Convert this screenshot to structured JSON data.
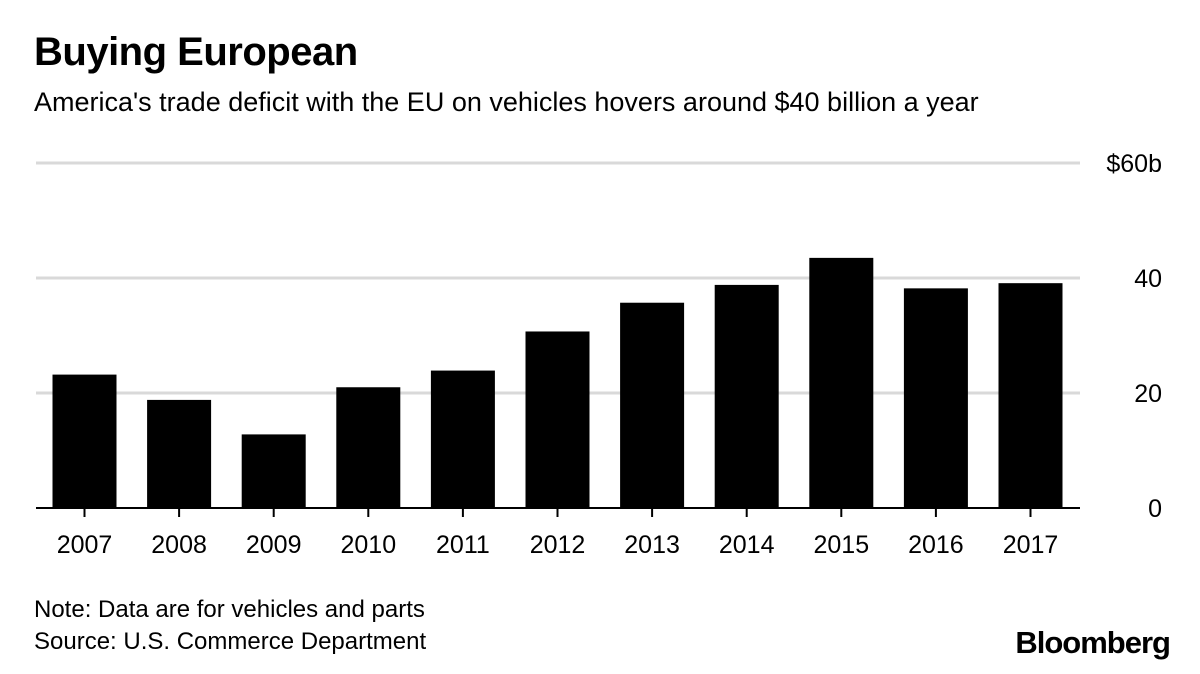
{
  "header": {
    "title": "Buying European",
    "subtitle": "America's trade deficit with the EU on vehicles hovers around $40 billion a year"
  },
  "footer": {
    "note": "Note: Data are for vehicles and parts",
    "source": "Source: U.S. Commerce Department",
    "brand": "Bloomberg"
  },
  "colors": {
    "bar": "#000000",
    "grid": "#d9d9d9",
    "axis": "#000000",
    "text": "#000000"
  },
  "chart_data": {
    "type": "bar",
    "title": "Buying European",
    "xlabel": "",
    "ylabel": "",
    "categories": [
      "2007",
      "2008",
      "2009",
      "2010",
      "2011",
      "2012",
      "2013",
      "2014",
      "2015",
      "2016",
      "2017"
    ],
    "values": [
      23.2,
      18.8,
      12.8,
      21.0,
      23.9,
      30.7,
      35.7,
      38.8,
      43.5,
      38.2,
      39.1
    ],
    "ylim": [
      0,
      60
    ],
    "yticks": [
      0,
      20,
      40,
      60
    ],
    "ytick_labels": [
      "0",
      "20",
      "40",
      "$60b"
    ],
    "grid": true
  }
}
